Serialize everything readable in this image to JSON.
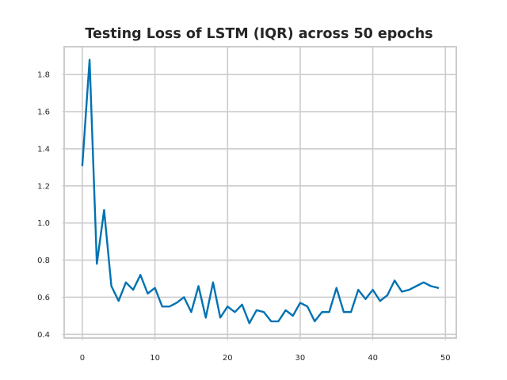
{
  "chart_data": {
    "type": "line",
    "title": "Testing Loss of LSTM (IQR) across 50 epochs",
    "xlabel": "",
    "ylabel": "",
    "xlim": [
      -2.5,
      51.5
    ],
    "ylim": [
      0.38,
      1.95
    ],
    "xticks": [
      0,
      10,
      20,
      30,
      40,
      50
    ],
    "yticks": [
      0.4,
      0.6,
      0.8,
      1.0,
      1.2,
      1.4,
      1.6,
      1.8
    ],
    "xtick_labels": [
      "0",
      "10",
      "20",
      "30",
      "40",
      "50"
    ],
    "ytick_labels": [
      "0.4",
      "0.6",
      "0.8",
      "1.0",
      "1.2",
      "1.4",
      "1.6",
      "1.8"
    ],
    "grid": true,
    "legend": false,
    "x": [
      0,
      1,
      2,
      3,
      4,
      5,
      6,
      7,
      8,
      9,
      10,
      11,
      12,
      13,
      14,
      15,
      16,
      17,
      18,
      19,
      20,
      21,
      22,
      23,
      24,
      25,
      26,
      27,
      28,
      29,
      30,
      31,
      32,
      33,
      34,
      35,
      36,
      37,
      38,
      39,
      40,
      41,
      42,
      43,
      44,
      45,
      46,
      47,
      48,
      49
    ],
    "series": [
      {
        "color": "#0072b2",
        "values": [
          1.31,
          1.88,
          0.78,
          1.07,
          0.66,
          0.58,
          0.68,
          0.64,
          0.72,
          0.62,
          0.65,
          0.55,
          0.55,
          0.57,
          0.6,
          0.52,
          0.66,
          0.49,
          0.68,
          0.49,
          0.55,
          0.52,
          0.56,
          0.46,
          0.53,
          0.52,
          0.47,
          0.47,
          0.53,
          0.5,
          0.57,
          0.55,
          0.47,
          0.52,
          0.52,
          0.65,
          0.52,
          0.52,
          0.64,
          0.59,
          0.64,
          0.58,
          0.61,
          0.69,
          0.63,
          0.64,
          0.66,
          0.68,
          0.66,
          0.65
        ]
      }
    ]
  }
}
